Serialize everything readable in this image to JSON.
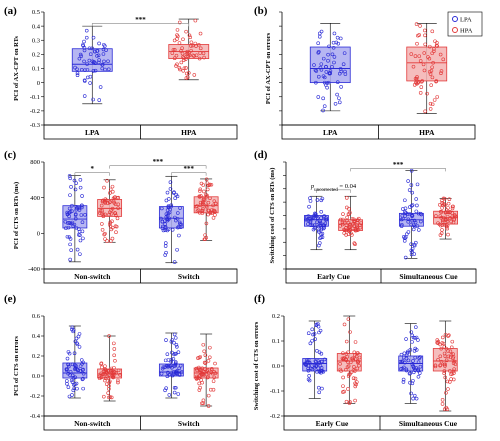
{
  "figure": {
    "legend": [
      {
        "name": "LPA",
        "color": "#2b2bd6"
      },
      {
        "name": "HPA",
        "color": "#e23a3a"
      }
    ]
  },
  "chart_data": [
    {
      "panel": "(a)",
      "type": "box",
      "ylabel": "PCI of AX-CPT on RTs",
      "ylim": [
        -0.3,
        0.5
      ],
      "yticks": [
        "0.5",
        "0.4",
        "0.3",
        "0.2",
        "0.1",
        "0",
        "-0.1",
        "-0.2",
        "-0.3"
      ],
      "categories": [
        "LPA",
        "HPA"
      ],
      "groups": [
        {
          "x": "LPA",
          "series": "LPA",
          "min": -0.15,
          "q1": 0.08,
          "median": 0.13,
          "q3": 0.24,
          "max": 0.4
        },
        {
          "x": "HPA",
          "series": "HPA",
          "min": 0.02,
          "q1": 0.17,
          "median": 0.22,
          "q3": 0.27,
          "max": 0.45
        }
      ],
      "significance": [
        {
          "from": 0,
          "to": 1,
          "label": "***",
          "y": 0.42
        }
      ]
    },
    {
      "panel": "(b)",
      "type": "box",
      "ylabel": "PCI of AX-CPT on errors",
      "ylim": [
        -1,
        1
      ],
      "yticks": [],
      "categories": [
        "LPA",
        "HPA"
      ],
      "groups": [
        {
          "x": "LPA",
          "series": "LPA",
          "min": -0.75,
          "q1": -0.25,
          "median": 0.0,
          "q3": 0.38,
          "max": 0.8
        },
        {
          "x": "HPA",
          "series": "HPA",
          "min": -0.8,
          "q1": -0.22,
          "median": 0.1,
          "q3": 0.38,
          "max": 0.8
        }
      ],
      "significance": []
    },
    {
      "panel": "(c)",
      "type": "box",
      "ylabel": "PCI of CTS on RTs (ms)",
      "ylim": [
        -400,
        800
      ],
      "yticks": [
        "800",
        "400",
        "0",
        "-400"
      ],
      "categories": [
        "Non-switch",
        "Switch"
      ],
      "groups": [
        {
          "x": "Non-switch",
          "series": "LPA",
          "min": -320,
          "q1": 60,
          "median": 160,
          "q3": 310,
          "max": 650
        },
        {
          "x": "Non-switch",
          "series": "HPA",
          "min": -100,
          "q1": 190,
          "median": 280,
          "q3": 380,
          "max": 600
        },
        {
          "x": "Switch",
          "series": "LPA",
          "min": -330,
          "q1": 60,
          "median": 170,
          "q3": 300,
          "max": 640
        },
        {
          "x": "Switch",
          "series": "HPA",
          "min": -80,
          "q1": 230,
          "median": 310,
          "q3": 410,
          "max": 610
        }
      ],
      "significance": [
        {
          "from": 0,
          "to": 1,
          "label": "*",
          "y": 680
        },
        {
          "from": 1,
          "to": 3,
          "label": "***",
          "y": 760
        },
        {
          "from": 2,
          "to": 3,
          "label": "***",
          "y": 680
        }
      ]
    },
    {
      "panel": "(d)",
      "type": "box",
      "ylabel": "Switching cost of CTS on RTs (ms)",
      "ylim": [
        -200,
        300
      ],
      "yticks": [],
      "categories": [
        "Early Cue",
        "Simultaneous Cue"
      ],
      "groups": [
        {
          "x": "Early Cue",
          "series": "LPA",
          "min": -110,
          "q1": 0,
          "median": 30,
          "q3": 50,
          "max": 140
        },
        {
          "x": "Early Cue",
          "series": "HPA",
          "min": -110,
          "q1": -20,
          "median": 10,
          "q3": 30,
          "max": 140
        },
        {
          "x": "Simultaneous Cue",
          "series": "LPA",
          "min": -150,
          "q1": 0,
          "median": 30,
          "q3": 60,
          "max": 260
        },
        {
          "x": "Simultaneous Cue",
          "series": "HPA",
          "min": -60,
          "q1": 10,
          "median": 40,
          "q3": 70,
          "max": 130
        }
      ],
      "significance": [
        {
          "from": 1,
          "to": 3,
          "label": "***",
          "y": 270
        }
      ],
      "annotation": {
        "text_main": "p",
        "text_sub": "uncorrected",
        "text_rest": " = 0.04",
        "from": 0,
        "to": 1,
        "y": 170
      }
    },
    {
      "panel": "(e)",
      "type": "box",
      "ylabel": "PCI of CTS on errors",
      "ylim": [
        -0.4,
        0.6
      ],
      "yticks": [
        "0.6",
        "0.4",
        "0.2",
        "0.0",
        "-0.2",
        "-0.4"
      ],
      "categories": [
        "Non-switch",
        "Switch"
      ],
      "groups": [
        {
          "x": "Non-switch",
          "series": "LPA",
          "min": -0.22,
          "q1": -0.02,
          "median": 0.03,
          "q3": 0.13,
          "max": 0.5
        },
        {
          "x": "Non-switch",
          "series": "HPA",
          "min": -0.25,
          "q1": -0.02,
          "median": 0.02,
          "q3": 0.07,
          "max": 0.4
        },
        {
          "x": "Switch",
          "series": "LPA",
          "min": -0.22,
          "q1": 0.0,
          "median": 0.04,
          "q3": 0.12,
          "max": 0.43
        },
        {
          "x": "Switch",
          "series": "HPA",
          "min": -0.3,
          "q1": -0.02,
          "median": 0.03,
          "q3": 0.08,
          "max": 0.42
        }
      ],
      "significance": []
    },
    {
      "panel": "(f)",
      "type": "box",
      "ylabel": "Switching cost of CTS on errors",
      "ylim": [
        -0.2,
        0.2
      ],
      "yticks": [
        "0.2",
        "0.1",
        "0.0",
        "-0.1",
        "-0.2"
      ],
      "categories": [
        "Early Cue",
        "Simultaneous Cue"
      ],
      "groups": [
        {
          "x": "Early Cue",
          "series": "LPA",
          "min": -0.13,
          "q1": -0.02,
          "median": 0.01,
          "q3": 0.03,
          "max": 0.18
        },
        {
          "x": "Early Cue",
          "series": "HPA",
          "min": -0.15,
          "q1": -0.02,
          "median": 0.02,
          "q3": 0.05,
          "max": 0.2
        },
        {
          "x": "Simultaneous Cue",
          "series": "LPA",
          "min": -0.15,
          "q1": -0.02,
          "median": 0.01,
          "q3": 0.04,
          "max": 0.17
        },
        {
          "x": "Simultaneous Cue",
          "series": "HPA",
          "min": -0.18,
          "q1": -0.02,
          "median": 0.02,
          "q3": 0.07,
          "max": 0.18
        }
      ],
      "significance": []
    }
  ]
}
